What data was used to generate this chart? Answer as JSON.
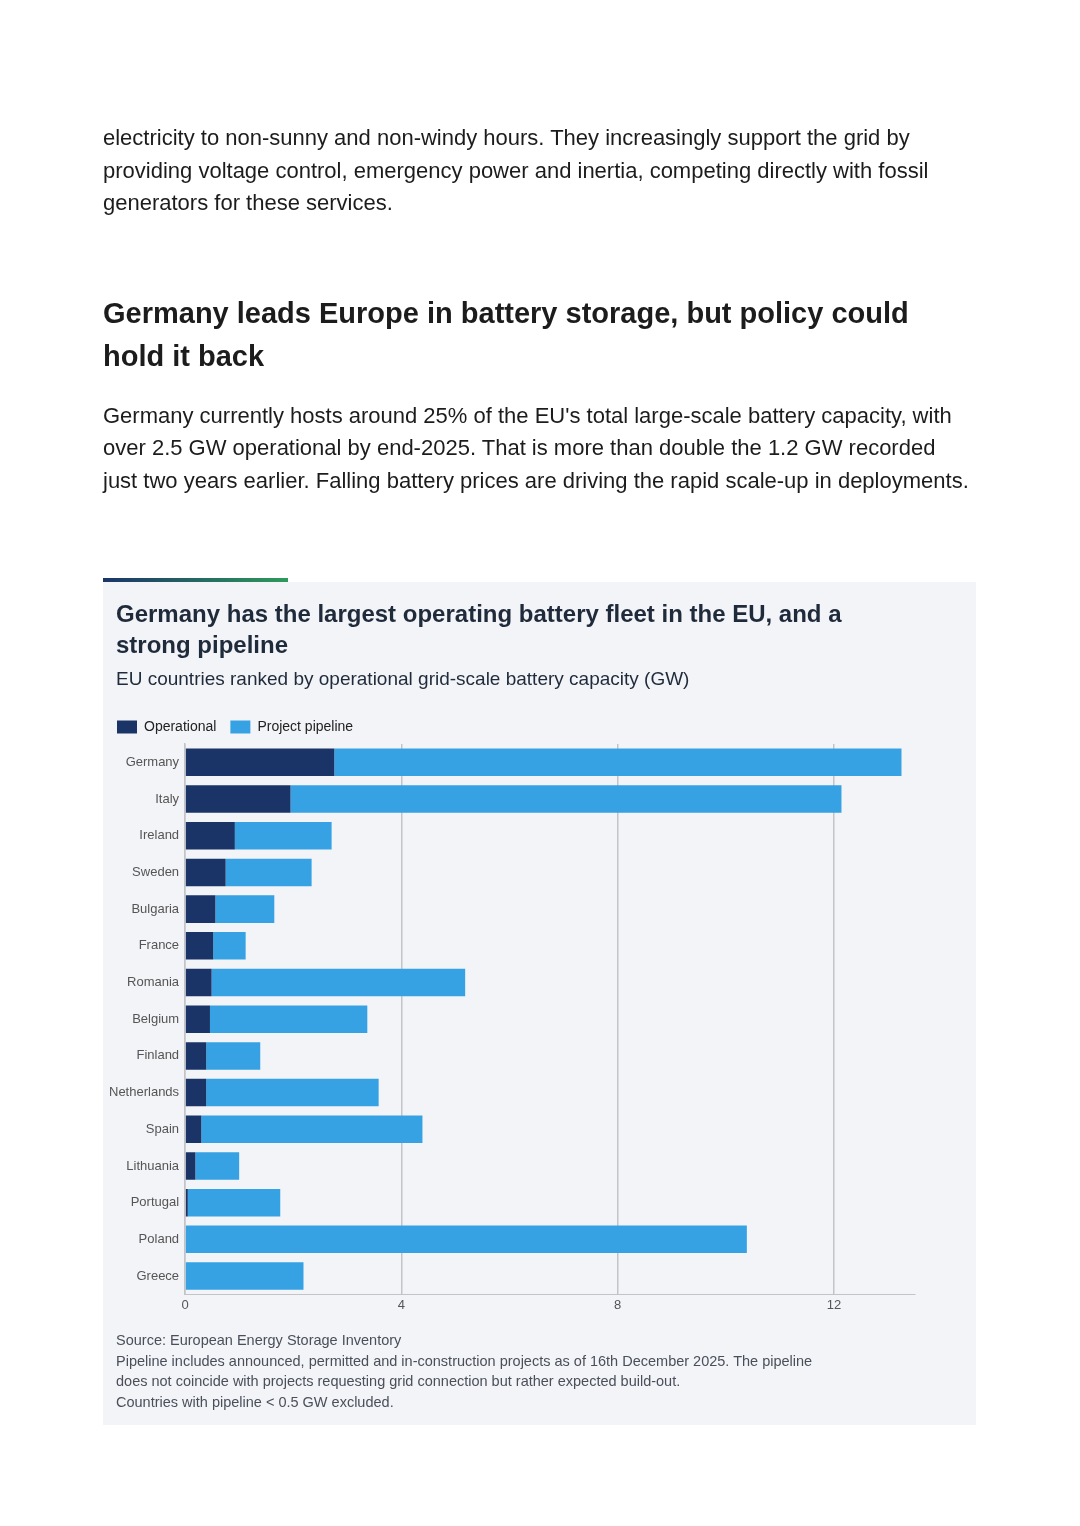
{
  "chart_data": {
    "type": "bar",
    "orientation": "horizontal",
    "stacked": true,
    "title": "Germany has the largest operating battery fleet in the EU, and a strong pipeline",
    "subtitle": "EU countries ranked by operational grid-scale battery capacity (GW)",
    "categories": [
      "Germany",
      "Italy",
      "Ireland",
      "Sweden",
      "Bulgaria",
      "France",
      "Romania",
      "Belgium",
      "Finland",
      "Netherlands",
      "Spain",
      "Lithuania",
      "Portugal",
      "Poland",
      "Greece"
    ],
    "series": [
      {
        "name": "Operational",
        "color": "#1b3468",
        "values": [
          2.76,
          1.95,
          0.92,
          0.75,
          0.56,
          0.52,
          0.49,
          0.46,
          0.39,
          0.39,
          0.3,
          0.19,
          0.05,
          null,
          0
        ]
      },
      {
        "name": "Project pipeline",
        "color": "#36a2e3",
        "values": [
          10.49,
          10.19,
          1.79,
          1.59,
          1.09,
          0.6,
          4.69,
          2.91,
          1.0,
          3.19,
          4.09,
          0.81,
          1.71,
          10.39,
          2.19
        ]
      }
    ],
    "xlim": [
      0,
      13.5
    ],
    "xticks": [
      0,
      4,
      8,
      12
    ],
    "grid": "x",
    "legend": "top left",
    "annotations": [
      "electricity to non-sunny and non-windy hours. They increasingly support the grid by providing voltage control, emergency power and inertia, competing directly with fossil generators for these services.",
      "Germany leads Europe in battery storage, but policy could hold it back",
      "Germany currently hosts around 25% of the EU's total large-scale battery capacity, with over 2.5 GW operational by end-2025. That is more than double the 1.2 GW recorded just two years earlier. Falling battery prices are driving the rapid scale-up in deployments.",
      "Source: European Energy Storage Inventory",
      "Pipeline includes announced, permitted and in-construction projects as of 16th December 2025. The pipeline does not coincide with projects requesting grid connection but rather expected build-out.",
      "Countries with pipeline < 0.5 GW excluded."
    ]
  }
}
